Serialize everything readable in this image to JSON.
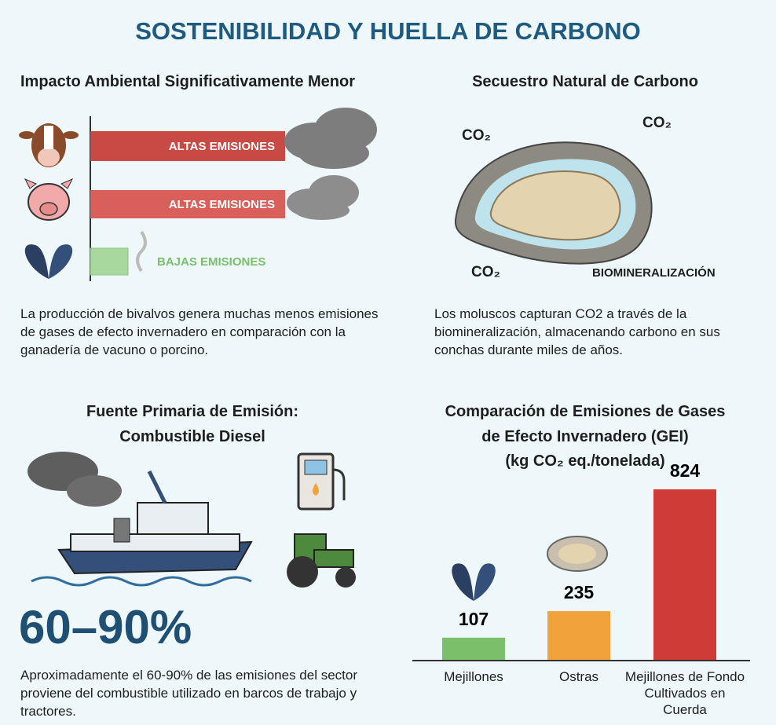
{
  "title": "SOSTENIBILIDAD Y HUELLA DE CARBONO",
  "impact": {
    "heading": "Impacto Ambiental Significativamente Menor",
    "bars": [
      "ALTAS EMISIONES",
      "ALTAS EMISIONES",
      "BAJAS EMISIONES"
    ],
    "text": "La producción de bivalvos genera muchas menos emisiones de gases de efecto invernadero en comparación con la ganadería de vacuno o porcino."
  },
  "sequestration": {
    "heading": "Secuestro Natural de Carbono",
    "labels": [
      "CO₂",
      "CO₂",
      "CO₂",
      "BIOMINERALIZACIÓN"
    ],
    "text": "Los moluscos capturan CO2 a través de la biomineralización, almacenando carbono en sus conchas durante miles de años."
  },
  "diesel": {
    "heading": [
      "Fuente Primaria de Emisión:",
      "Combustible Diesel"
    ],
    "stat": "60–90%",
    "text": "Aproximadamente el 60-90% de las emisiones del sector proviene del combustible utilizado en barcos de trabajo y tractores."
  },
  "chart_data": {
    "type": "bar",
    "title": [
      "Comparación de Emisiones de Gases",
      "de Efecto Invernadero (GEI)",
      "(kg CO₂ eq./tonelada)"
    ],
    "categories": [
      "Mejillones",
      "Ostras",
      "Mejillones de Fondo Cultivados en Cuerda"
    ],
    "values": [
      107,
      235,
      824
    ],
    "colors": [
      "#7cbf6b",
      "#f2a23a",
      "#cf3b36"
    ]
  }
}
